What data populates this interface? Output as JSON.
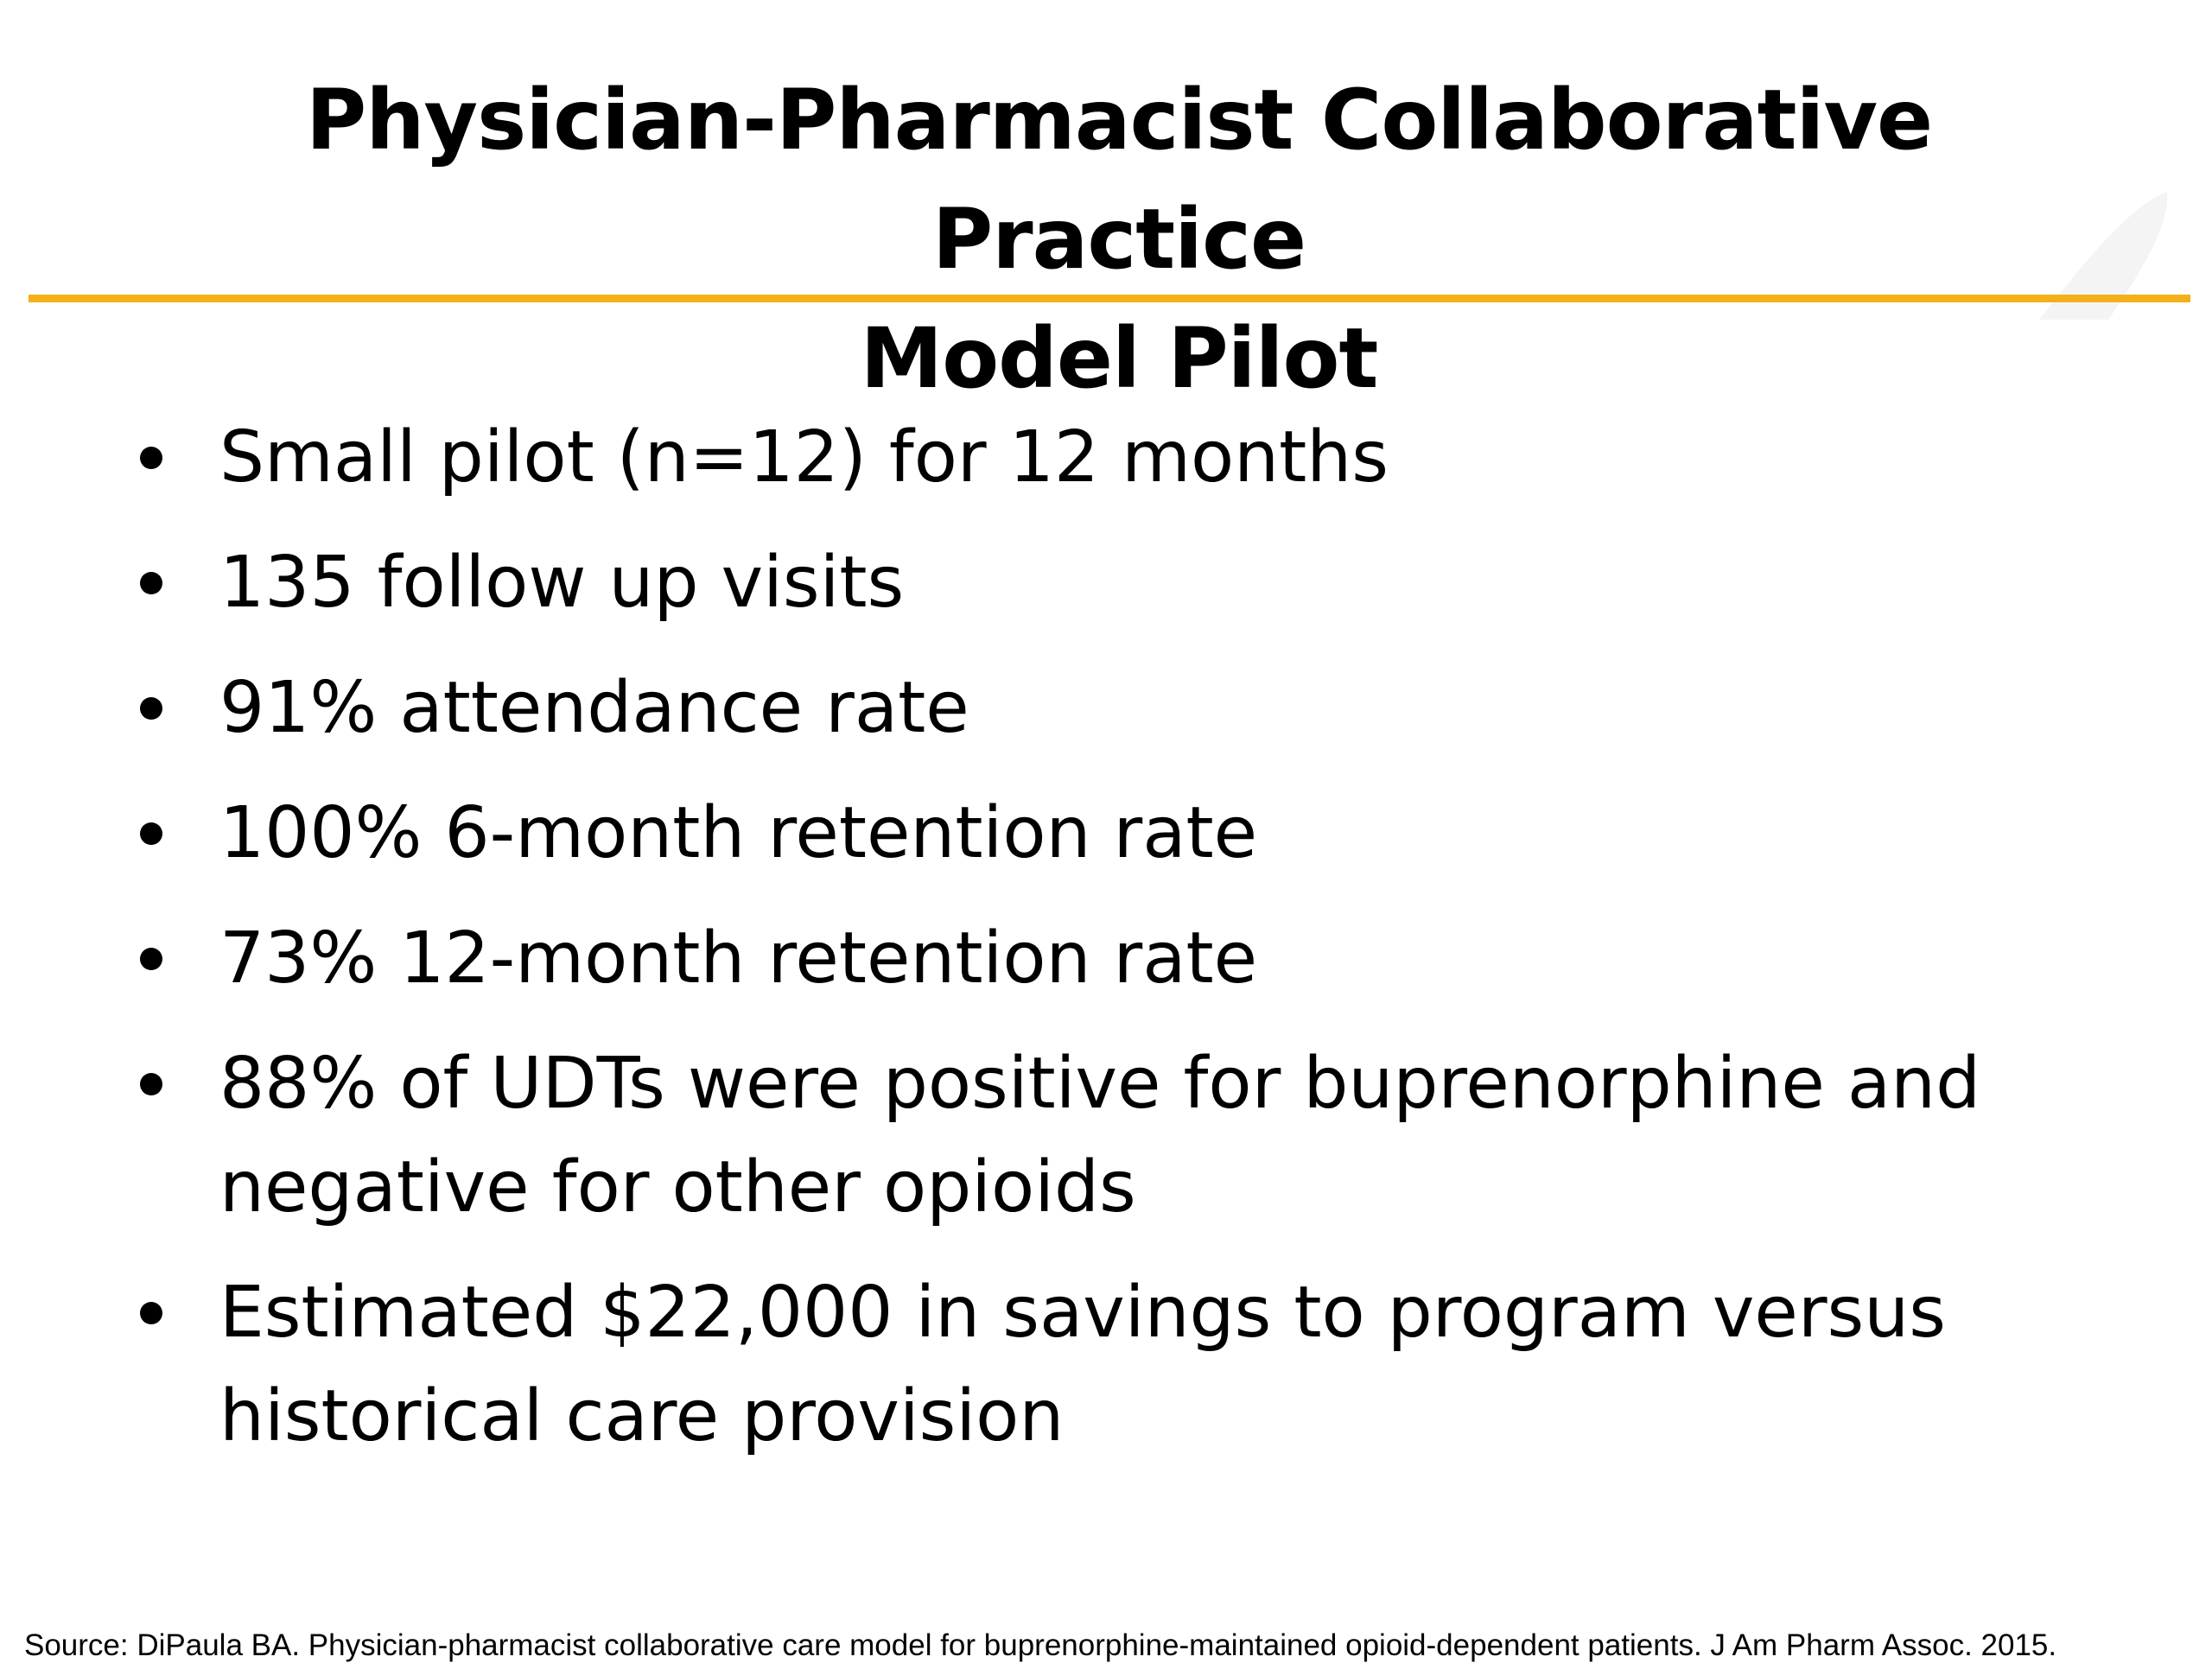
{
  "slide": {
    "title_lines": [
      "Physician-Pharmacist Collaborative Practice",
      "Model Pilot"
    ],
    "accent_color": "#f2b11b",
    "bullets": [
      "Small pilot (n=12) for 12 months",
      "135 follow up visits",
      "91% attendance rate",
      "100% 6-month retention rate",
      "73% 12-month retention rate",
      "88% of UDTs were positive for buprenorphine and negative for other opioids",
      "Estimated $22,000 in savings to program versus historical care provision"
    ],
    "source": "Source: DiPaula BA. Physician-pharmacist collaborative care model for buprenorphine-maintained opioid-dependent patients. J Am Pharm Assoc. 2015."
  }
}
